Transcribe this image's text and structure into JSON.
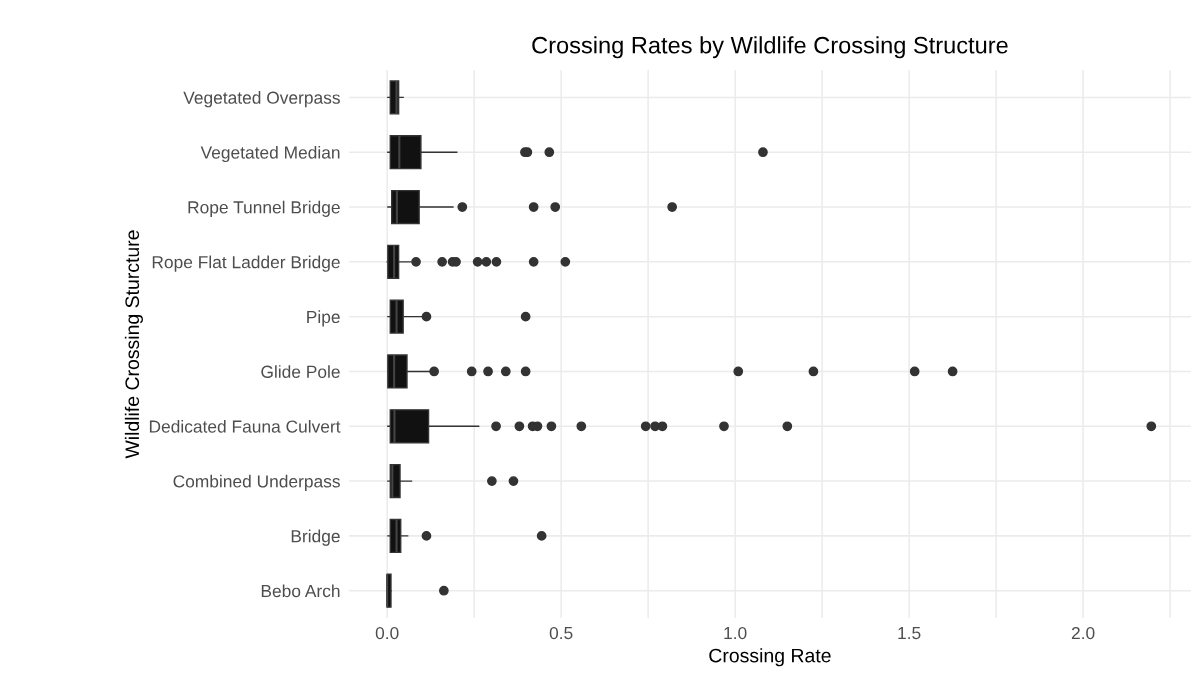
{
  "chart_data": {
    "type": "box",
    "orientation": "horizontal",
    "title": "Crossing Rates by Wildlife Crossing Structure",
    "xlabel": "Crossing Rate",
    "ylabel": "Wildlife Crossing Sturcture",
    "categories": [
      "Vegetated Overpass",
      "Vegetated Median",
      "Rope Tunnel Bridge",
      "Rope Flat Ladder Bridge",
      "Pipe",
      "Glide Pole",
      "Dedicated Fauna Culvert",
      "Combined Underpass",
      "Bridge",
      "Bebo Arch"
    ],
    "xlim": [
      -0.11,
      2.31
    ],
    "xticks": [
      {
        "value": 0,
        "label": "0.0"
      },
      {
        "value": 0.25,
        "label": null
      },
      0.5,
      {
        "value": 0.75,
        "label": null
      },
      {
        "value": 1,
        "label": "1.0"
      },
      {
        "value": 1.25,
        "label": null
      },
      1.5,
      {
        "value": 1.75,
        "label": null
      },
      {
        "value": 2,
        "label": "2.0"
      },
      {
        "value": 2.25,
        "label": null
      }
    ],
    "grid": true,
    "series": [
      {
        "color": "#111111",
        "boxes": [
          {
            "low": 0.002,
            "q1": 0.009,
            "median": 0.027,
            "q3": 0.033,
            "high": 0.046
          },
          {
            "low": 0.002,
            "q1": 0.009,
            "median": 0.035,
            "q3": 0.097,
            "high": 0.2,
            "outliers": [
              0.396,
              0.403,
              0.466,
              1.08
            ]
          },
          {
            "low": 0.002,
            "q1": 0.013,
            "median": 0.028,
            "q3": 0.092,
            "high": 0.189,
            "outliers": [
              0.216,
              0.421,
              0.483,
              0.819
            ]
          },
          {
            "low": 0.0,
            "q1": 0.002,
            "median": 0.02,
            "q3": 0.033,
            "high": 0.068,
            "outliers": [
              0.083,
              0.158,
              0.188,
              0.198,
              0.26,
              0.285,
              0.314,
              0.421,
              0.512
            ]
          },
          {
            "low": 0.002,
            "q1": 0.009,
            "median": 0.027,
            "q3": 0.046,
            "high": 0.1,
            "outliers": [
              0.113,
              0.398
            ]
          },
          {
            "low": 0.002,
            "q1": 0.002,
            "median": 0.02,
            "q3": 0.057,
            "high": 0.125,
            "outliers": [
              0.135,
              0.243,
              0.29,
              0.341,
              0.398,
              1.009,
              1.225,
              1.516,
              1.625
            ]
          },
          {
            "low": 0.002,
            "q1": 0.009,
            "median": 0.021,
            "q3": 0.119,
            "high": 0.263,
            "outliers": [
              0.313,
              0.38,
              0.418,
              0.432,
              0.472,
              0.558,
              0.743,
              0.77,
              0.791,
              0.968,
              1.15,
              2.196
            ]
          },
          {
            "low": 0.002,
            "q1": 0.009,
            "median": 0.015,
            "q3": 0.037,
            "high": 0.07,
            "outliers": [
              0.301,
              0.363
            ]
          },
          {
            "low": 0.002,
            "q1": 0.009,
            "median": 0.027,
            "q3": 0.039,
            "high": 0.059,
            "outliers": [
              0.113,
              0.444
            ]
          },
          {
            "low": 0.0,
            "q1": 0.0,
            "median": 0.0,
            "q3": 0.011,
            "high": 0.011,
            "outliers": [
              0.163
            ]
          }
        ]
      }
    ]
  }
}
